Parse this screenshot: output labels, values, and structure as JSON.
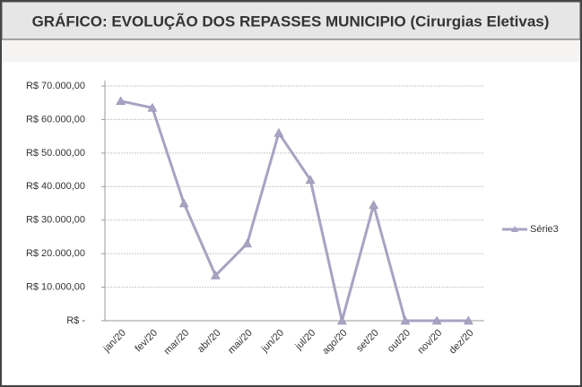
{
  "chart_data": {
    "type": "line",
    "title": "GRÁFICO: EVOLUÇÃO DOS REPASSES MUNICIPIO (Cirurgias Eletivas)",
    "categories": [
      "jan/20",
      "fev/20",
      "mar/20",
      "abr/20",
      "mai/20",
      "jun/20",
      "jul/20",
      "ago/20",
      "set/20",
      "out/20",
      "nov/20",
      "dez/20"
    ],
    "series": [
      {
        "name": "Série3",
        "color": "#a7a3c2",
        "values": [
          65500,
          63500,
          35000,
          13500,
          23000,
          56000,
          42000,
          0,
          34500,
          0,
          0,
          0
        ]
      }
    ],
    "ylim": [
      0,
      70000
    ],
    "yticks": [
      {
        "value": 0,
        "label": "R$ -"
      },
      {
        "value": 10000,
        "label": "R$ 10.000,00"
      },
      {
        "value": 20000,
        "label": "R$ 20.000,00"
      },
      {
        "value": 30000,
        "label": "R$ 30.000,00"
      },
      {
        "value": 40000,
        "label": "R$ 40.000,00"
      },
      {
        "value": 50000,
        "label": "R$ 50.000,00"
      },
      {
        "value": 60000,
        "label": "R$ 60.000,00"
      },
      {
        "value": 70000,
        "label": "R$ 70.000,00"
      }
    ],
    "grid": true,
    "legend": "right"
  }
}
